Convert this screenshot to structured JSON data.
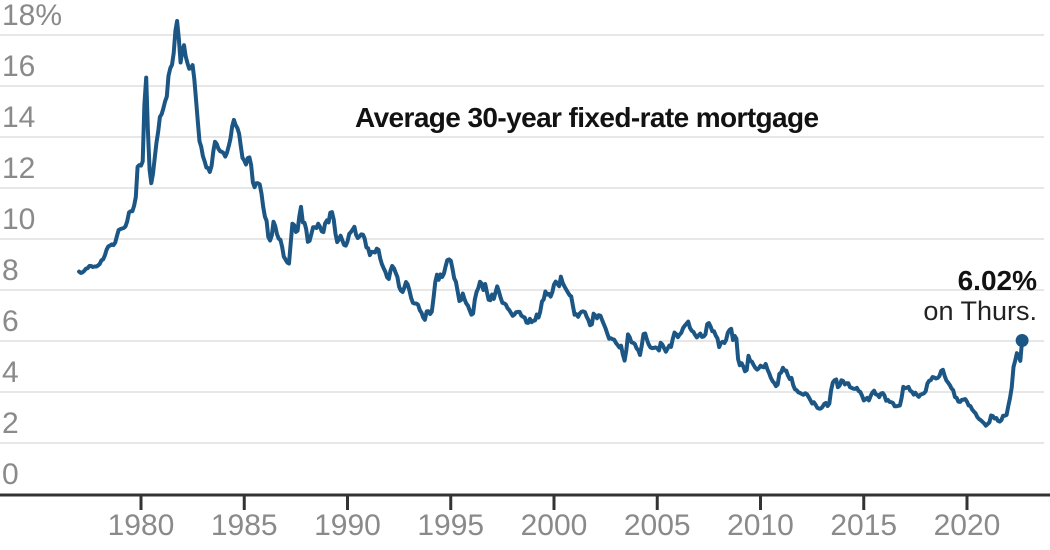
{
  "chart_data": {
    "type": "line",
    "title": "Average 30-year fixed-rate mortgage",
    "series_name": "Average 30-year fixed-rate mortgage (%)",
    "x_start_year": 1977,
    "x_step_months": 1,
    "xlim": [
      1973.2,
      2024.0
    ],
    "ylim": [
      0,
      18.66
    ],
    "grid": "horizontal",
    "legend": "none",
    "colors": {
      "line": "#1b5684",
      "grid": "#e7e7e7",
      "axis": "#333333",
      "tick_label": "#8a8a8a",
      "text": "#121212"
    },
    "y_ticks": [
      {
        "value": 18,
        "label": "18%"
      },
      {
        "value": 16,
        "label": "16"
      },
      {
        "value": 14,
        "label": "14"
      },
      {
        "value": 12,
        "label": "12"
      },
      {
        "value": 10,
        "label": "10"
      },
      {
        "value": 8,
        "label": "8"
      },
      {
        "value": 6,
        "label": "6"
      },
      {
        "value": 4,
        "label": "4"
      },
      {
        "value": 2,
        "label": "2"
      },
      {
        "value": 0,
        "label": "0"
      }
    ],
    "x_ticks": [
      {
        "value": 1980,
        "label": "1980"
      },
      {
        "value": 1985,
        "label": "1985"
      },
      {
        "value": 1990,
        "label": "1990"
      },
      {
        "value": 1995,
        "label": "1995"
      },
      {
        "value": 2000,
        "label": "2000"
      },
      {
        "value": 2005,
        "label": "2005"
      },
      {
        "value": 2010,
        "label": "2010"
      },
      {
        "value": 2015,
        "label": "2015"
      },
      {
        "value": 2020,
        "label": "2020"
      }
    ],
    "annotation": {
      "value": 6.02,
      "value_label": "6.02%",
      "note": "on Thurs."
    },
    "values": [
      8.72,
      8.67,
      8.69,
      8.75,
      8.83,
      8.86,
      8.94,
      8.94,
      8.9,
      8.92,
      8.92,
      8.96,
      9.02,
      9.16,
      9.2,
      9.36,
      9.58,
      9.71,
      9.74,
      9.79,
      9.76,
      9.86,
      10.11,
      10.35,
      10.39,
      10.41,
      10.43,
      10.5,
      10.69,
      11.04,
      11.09,
      11.09,
      11.3,
      11.64,
      12.83,
      12.9,
      12.88,
      13.04,
      15.28,
      16.33,
      14.26,
      12.71,
      12.19,
      12.56,
      13.2,
      13.79,
      14.21,
      14.79,
      14.9,
      15.13,
      15.4,
      15.58,
      16.4,
      16.7,
      16.83,
      17.29,
      18.16,
      18.55,
      17.82,
      16.92,
      17.4,
      17.6,
      17.16,
      16.89,
      16.68,
      16.7,
      16.82,
      16.27,
      15.43,
      14.61,
      13.83,
      13.62,
      13.25,
      13.04,
      12.8,
      12.78,
      12.63,
      12.87,
      13.43,
      13.81,
      13.73,
      13.54,
      13.44,
      13.42,
      13.37,
      13.23,
      13.39,
      13.65,
      13.94,
      14.42,
      14.67,
      14.47,
      14.35,
      14.13,
      13.64,
      13.18,
      13.08,
      12.92,
      13.17,
      13.2,
      12.91,
      12.22,
      12.03,
      12.19,
      12.19,
      12.14,
      11.78,
      11.26,
      10.88,
      10.71,
      10.08,
      9.94,
      10.14,
      10.68,
      10.51,
      10.2,
      10.01,
      9.97,
      9.7,
      9.31,
      9.2,
      9.08,
      9.04,
      9.83,
      10.6,
      10.54,
      10.28,
      10.33,
      10.89,
      11.26,
      10.65,
      10.64,
      10.38,
      9.89,
      9.93,
      10.2,
      10.46,
      10.46,
      10.43,
      10.6,
      10.48,
      10.3,
      10.27,
      10.61,
      10.73,
      10.65,
      11.03,
      11.05,
      10.77,
      10.2,
      9.88,
      9.99,
      10.13,
      9.95,
      9.77,
      9.74,
      9.9,
      10.2,
      10.27,
      10.37,
      10.48,
      10.16,
      10.04,
      10.1,
      10.18,
      10.17,
      10.01,
      9.67,
      9.64,
      9.37,
      9.5,
      9.49,
      9.47,
      9.62,
      9.58,
      9.24,
      9.01,
      8.86,
      8.71,
      8.5,
      8.43,
      8.76,
      8.94,
      8.85,
      8.67,
      8.51,
      8.13,
      7.98,
      7.92,
      8.09,
      8.31,
      8.22,
      7.99,
      7.68,
      7.5,
      7.47,
      7.47,
      7.42,
      7.21,
      7.11,
      6.92,
      6.83,
      7.16,
      7.17,
      7.06,
      7.15,
      7.68,
      8.32,
      8.6,
      8.4,
      8.61,
      8.51,
      8.64,
      8.93,
      9.17,
      9.2,
      9.15,
      8.83,
      8.46,
      8.32,
      7.96,
      7.57,
      7.61,
      7.86,
      7.64,
      7.48,
      7.38,
      7.2,
      7.03,
      7.08,
      7.62,
      7.93,
      8.07,
      8.32,
      8.25,
      8.0,
      8.23,
      7.92,
      7.62,
      7.6,
      7.82,
      7.65,
      7.9,
      8.14,
      7.94,
      7.69,
      7.5,
      7.48,
      7.43,
      7.29,
      7.21,
      7.1,
      6.99,
      7.04,
      7.13,
      7.14,
      7.14,
      7.0,
      6.95,
      6.92,
      6.72,
      6.71,
      6.87,
      6.74,
      6.79,
      6.81,
      7.04,
      6.92,
      7.15,
      7.55,
      7.63,
      7.94,
      7.82,
      7.85,
      7.74,
      7.91,
      8.21,
      8.33,
      8.24,
      8.15,
      8.52,
      8.29,
      8.15,
      8.03,
      7.91,
      7.8,
      7.75,
      7.38,
      7.03,
      7.05,
      6.95,
      7.08,
      7.15,
      7.16,
      7.13,
      6.95,
      6.82,
      6.62,
      6.66,
      7.07,
      7.0,
      6.89,
      7.01,
      6.99,
      6.81,
      6.65,
      6.49,
      6.29,
      6.09,
      6.11,
      6.07,
      6.05,
      5.92,
      5.84,
      5.75,
      5.81,
      5.48,
      5.23,
      5.63,
      6.26,
      6.15,
      5.95,
      5.93,
      5.88,
      5.71,
      5.64,
      5.45,
      5.83,
      6.27,
      6.29,
      6.06,
      5.87,
      5.75,
      5.72,
      5.73,
      5.75,
      5.71,
      5.63,
      5.93,
      5.86,
      5.72,
      5.58,
      5.7,
      5.82,
      5.77,
      6.07,
      6.33,
      6.27,
      6.15,
      6.25,
      6.32,
      6.51,
      6.6,
      6.68,
      6.76,
      6.52,
      6.4,
      6.36,
      6.24,
      6.14,
      6.22,
      6.29,
      6.16,
      6.18,
      6.26,
      6.66,
      6.7,
      6.57,
      6.38,
      6.38,
      6.21,
      6.1,
      5.76,
      5.92,
      5.97,
      5.92,
      6.04,
      6.32,
      6.43,
      6.48,
      6.04,
      6.2,
      6.09,
      5.29,
      5.05,
      5.13,
      5.0,
      4.81,
      4.86,
      5.42,
      5.22,
      5.19,
      5.06,
      4.95,
      4.88,
      4.93,
      5.03,
      4.99,
      4.97,
      5.1,
      4.89,
      4.74,
      4.56,
      4.43,
      4.35,
      4.23,
      4.3,
      4.71,
      4.76,
      4.95,
      4.84,
      4.84,
      4.64,
      4.51,
      4.55,
      4.27,
      4.11,
      4.07,
      3.99,
      3.96,
      3.92,
      3.89,
      3.95,
      3.91,
      3.8,
      3.68,
      3.55,
      3.6,
      3.5,
      3.38,
      3.35,
      3.35,
      3.41,
      3.53,
      3.57,
      3.45,
      3.54,
      4.07,
      4.37,
      4.46,
      4.49,
      4.19,
      4.26,
      4.46,
      4.43,
      4.3,
      4.34,
      4.34,
      4.19,
      4.16,
      4.13,
      4.12,
      4.16,
      4.04,
      4.0,
      3.86,
      3.67,
      3.71,
      3.77,
      3.67,
      3.84,
      3.98,
      4.05,
      3.91,
      3.89,
      3.8,
      3.94,
      3.96,
      3.87,
      3.66,
      3.69,
      3.61,
      3.6,
      3.57,
      3.44,
      3.44,
      3.46,
      3.47,
      3.77,
      4.2,
      4.15,
      4.17,
      4.2,
      4.05,
      4.01,
      3.9,
      3.97,
      3.88,
      3.81,
      3.9,
      3.92,
      3.95,
      4.03,
      4.33,
      4.44,
      4.47,
      4.59,
      4.57,
      4.53,
      4.55,
      4.63,
      4.83,
      4.87,
      4.64,
      4.46,
      4.37,
      4.27,
      4.14,
      4.07,
      3.8,
      3.77,
      3.62,
      3.61,
      3.69,
      3.7,
      3.72,
      3.62,
      3.47,
      3.45,
      3.31,
      3.23,
      3.16,
      3.02,
      2.94,
      2.89,
      2.83,
      2.77,
      2.68,
      2.74,
      2.81,
      3.08,
      3.06,
      2.96,
      2.98,
      2.87,
      2.84,
      2.9,
      3.07,
      3.07,
      3.1,
      3.45,
      3.76,
      4.17,
      4.98,
      5.23,
      5.52,
      5.41,
      5.22,
      6.02
    ]
  }
}
